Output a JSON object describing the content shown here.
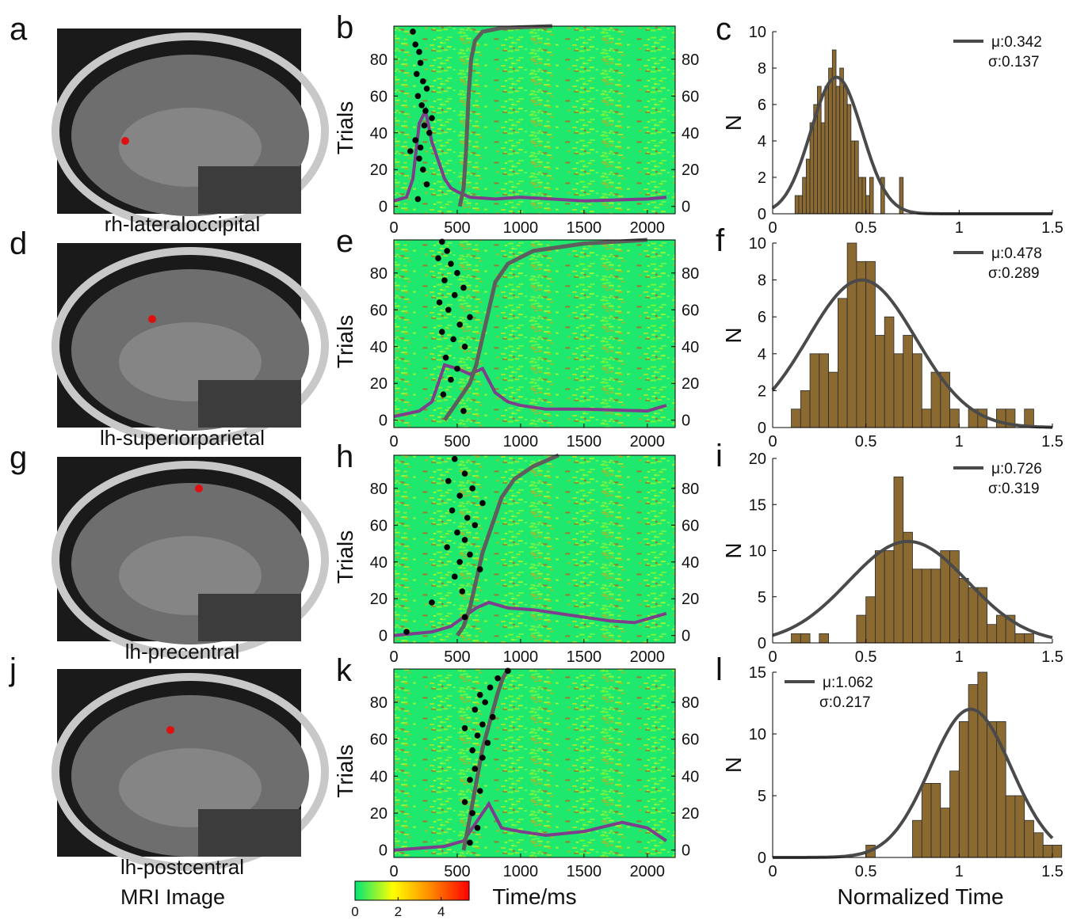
{
  "panels": [
    {
      "letter": "a",
      "label": "rh-lateraloccipital"
    },
    {
      "letter": "d",
      "label": "lh-superiorparietal"
    },
    {
      "letter": "g",
      "label": "lh-precentral"
    },
    {
      "letter": "j",
      "label": "lh-postcentral"
    }
  ],
  "mri_caption": "MRI Image",
  "chart_data": [
    {
      "type": "raster",
      "panel": "b",
      "ylabel": "Trials",
      "xlim": [
        0,
        2220
      ],
      "xticks": [
        0,
        500,
        1000,
        1500,
        2000
      ],
      "ylim": [
        -4,
        98
      ],
      "yticks": [
        0,
        20,
        40,
        60,
        80
      ],
      "y2lim": [
        -4,
        98
      ],
      "y2ticks": [
        0,
        20,
        40,
        60,
        80
      ],
      "background": "#1ee86e",
      "points": {
        "color": "#000000",
        "x": [
          150,
          170,
          200,
          210,
          180,
          230,
          260,
          190,
          220,
          250,
          300,
          240,
          280,
          170,
          210,
          130,
          200,
          230,
          260,
          190
        ],
        "y": [
          95,
          88,
          84,
          78,
          72,
          68,
          64,
          60,
          55,
          52,
          48,
          44,
          40,
          36,
          32,
          30,
          26,
          20,
          12,
          4
        ]
      },
      "curve": {
        "color": "#5e5e5e",
        "x": [
          520,
          550,
          570,
          590,
          610,
          640,
          700,
          850,
          1250
        ],
        "y": [
          0,
          10,
          30,
          60,
          80,
          90,
          95,
          97,
          98
        ]
      },
      "rate": {
        "color": "#7d3f8c",
        "axis": "y2",
        "x": [
          0,
          100,
          150,
          200,
          250,
          300,
          350,
          400,
          450,
          500,
          600,
          800,
          1000,
          1500,
          2000,
          2150
        ],
        "values": [
          3,
          5,
          15,
          45,
          52,
          35,
          25,
          15,
          10,
          8,
          5,
          4,
          5,
          3,
          4,
          5
        ]
      }
    },
    {
      "type": "raster",
      "panel": "e",
      "ylabel": "Trials",
      "xlim": [
        0,
        2220
      ],
      "xticks": [
        0,
        500,
        1000,
        1500,
        2000
      ],
      "ylim": [
        -4,
        98
      ],
      "yticks": [
        0,
        20,
        40,
        60,
        80
      ],
      "y2lim": [
        -4,
        98
      ],
      "y2ticks": [
        0,
        20,
        40,
        60,
        80
      ],
      "background": "#1ee86e",
      "points": {
        "color": "#000000",
        "x": [
          380,
          420,
          350,
          450,
          500,
          400,
          550,
          480,
          360,
          430,
          600,
          520,
          380,
          470,
          560,
          410,
          500,
          450,
          390,
          550
        ],
        "y": [
          97,
          92,
          88,
          85,
          80,
          76,
          72,
          68,
          64,
          60,
          56,
          52,
          48,
          44,
          40,
          34,
          28,
          22,
          14,
          5
        ]
      },
      "curve": {
        "color": "#5e5e5e",
        "x": [
          400,
          450,
          500,
          600,
          650,
          700,
          750,
          800,
          900,
          1100,
          1500,
          2000
        ],
        "y": [
          0,
          5,
          10,
          20,
          30,
          45,
          60,
          75,
          85,
          92,
          96,
          98
        ]
      },
      "rate": {
        "color": "#7d3f8c",
        "axis": "y2",
        "x": [
          0,
          200,
          300,
          400,
          500,
          600,
          700,
          800,
          900,
          1000,
          1200,
          1500,
          2000,
          2150
        ],
        "values": [
          2,
          5,
          10,
          30,
          28,
          25,
          28,
          15,
          10,
          8,
          6,
          6,
          5,
          8
        ]
      }
    },
    {
      "type": "raster",
      "panel": "h",
      "ylabel": "Trials",
      "xlim": [
        0,
        2220
      ],
      "xticks": [
        0,
        500,
        1000,
        1500,
        2000
      ],
      "ylim": [
        -4,
        98
      ],
      "yticks": [
        0,
        20,
        40,
        60,
        80
      ],
      "y2lim": [
        -4,
        98
      ],
      "y2ticks": [
        0,
        20,
        40,
        60,
        80
      ],
      "background": "#1ee86e",
      "points": {
        "color": "#000000",
        "x": [
          480,
          560,
          430,
          620,
          520,
          700,
          460,
          580,
          640,
          500,
          560,
          420,
          600,
          520,
          680,
          480,
          540,
          300,
          560,
          100
        ],
        "y": [
          96,
          88,
          84,
          80,
          76,
          72,
          68,
          64,
          60,
          56,
          52,
          48,
          44,
          40,
          36,
          32,
          24,
          18,
          10,
          2
        ]
      },
      "curve": {
        "color": "#5e5e5e",
        "x": [
          500,
          550,
          600,
          650,
          700,
          750,
          800,
          850,
          950,
          1100,
          1300
        ],
        "y": [
          0,
          5,
          15,
          30,
          45,
          55,
          65,
          75,
          85,
          92,
          98
        ]
      },
      "rate": {
        "color": "#7d3f8c",
        "axis": "y2",
        "x": [
          0,
          300,
          450,
          550,
          650,
          750,
          900,
          1100,
          1300,
          1500,
          1700,
          1900,
          2150
        ],
        "values": [
          0,
          2,
          5,
          10,
          15,
          18,
          15,
          14,
          12,
          10,
          8,
          7,
          12
        ]
      }
    },
    {
      "type": "raster",
      "panel": "k",
      "ylabel": "Trials",
      "xlabel": "Time/ms",
      "xlim": [
        0,
        2220
      ],
      "xticks": [
        0,
        500,
        1000,
        1500,
        2000
      ],
      "ylim": [
        -4,
        98
      ],
      "yticks": [
        0,
        20,
        40,
        60,
        80
      ],
      "y2lim": [
        -4,
        98
      ],
      "y2ticks": [
        0,
        20,
        40,
        60,
        80
      ],
      "background": "#1ee86e",
      "points": {
        "color": "#000000",
        "x": [
          900,
          820,
          760,
          680,
          720,
          640,
          780,
          700,
          560,
          660,
          740,
          620,
          700,
          640,
          600,
          680,
          560,
          620,
          660,
          600
        ],
        "y": [
          97,
          93,
          88,
          84,
          80,
          76,
          72,
          68,
          66,
          62,
          58,
          54,
          50,
          44,
          38,
          32,
          26,
          20,
          12,
          4
        ]
      },
      "curve": {
        "color": "#5e5e5e",
        "x": [
          550,
          580,
          620,
          660,
          700,
          740,
          780,
          820,
          860,
          900
        ],
        "y": [
          0,
          10,
          25,
          40,
          55,
          65,
          75,
          85,
          93,
          98
        ]
      },
      "rate": {
        "color": "#7d3f8c",
        "axis": "y2",
        "x": [
          0,
          400,
          550,
          650,
          750,
          850,
          1000,
          1200,
          1500,
          1800,
          2000,
          2150
        ],
        "values": [
          0,
          2,
          5,
          15,
          25,
          12,
          10,
          8,
          10,
          15,
          12,
          5
        ]
      }
    },
    {
      "type": "histogram",
      "panel": "c",
      "ylabel": "N",
      "color": "#8b6a32",
      "legend": "upper right",
      "xlim": [
        0,
        1.5
      ],
      "xticks": [
        0,
        0.5,
        1,
        1.5
      ],
      "ylim": [
        0,
        10
      ],
      "yticks": [
        0,
        2,
        4,
        6,
        8,
        10
      ],
      "bins": [
        0.12,
        0.14,
        0.16,
        0.18,
        0.2,
        0.22,
        0.24,
        0.26,
        0.28,
        0.3,
        0.32,
        0.34,
        0.36,
        0.38,
        0.4,
        0.42,
        0.44,
        0.46,
        0.48,
        0.5,
        0.52,
        0.54,
        0.56,
        0.58,
        0.6,
        0.62,
        0.64,
        0.66,
        0.68,
        0.7
      ],
      "counts": [
        1,
        1,
        2,
        3,
        5,
        6,
        7,
        5,
        7,
        8,
        9,
        7,
        8,
        7,
        6,
        4,
        4,
        2,
        2,
        1,
        2,
        0,
        0,
        2,
        0,
        0,
        0,
        0,
        2
      ],
      "fit": {
        "color": "#4a4a4a",
        "mu": 0.342,
        "sigma": 0.137,
        "peak": 7.5,
        "labels": [
          "μ:0.342",
          "σ:0.137"
        ]
      }
    },
    {
      "type": "histogram",
      "panel": "f",
      "ylabel": "N",
      "color": "#8b6a32",
      "legend": "upper right",
      "xlim": [
        0,
        1.5
      ],
      "xticks": [
        0,
        0.5,
        1,
        1.5
      ],
      "ylim": [
        0,
        10
      ],
      "yticks": [
        0,
        2,
        4,
        6,
        8,
        10
      ],
      "bins": [
        0.1,
        0.15,
        0.2,
        0.25,
        0.3,
        0.35,
        0.4,
        0.45,
        0.5,
        0.55,
        0.6,
        0.65,
        0.7,
        0.75,
        0.8,
        0.85,
        0.9,
        0.95,
        1.0,
        1.05,
        1.1,
        1.15,
        1.2,
        1.25,
        1.3,
        1.35,
        1.4
      ],
      "counts": [
        1,
        2,
        4,
        4,
        3,
        7,
        10,
        9,
        9,
        5,
        6,
        4,
        5,
        4,
        1,
        3,
        3,
        1,
        0,
        1,
        1,
        0,
        1,
        1,
        0,
        1
      ],
      "fit": {
        "color": "#4a4a4a",
        "mu": 0.478,
        "sigma": 0.289,
        "peak": 8,
        "labels": [
          "μ:0.478",
          "σ:0.289"
        ]
      }
    },
    {
      "type": "histogram",
      "panel": "i",
      "ylabel": "N",
      "color": "#8b6a32",
      "legend": "upper right",
      "xlim": [
        0,
        1.5
      ],
      "xticks": [
        0,
        0.5,
        1,
        1.5
      ],
      "ylim": [
        0,
        20
      ],
      "yticks": [
        0,
        5,
        10,
        15,
        20
      ],
      "bins": [
        0.1,
        0.15,
        0.2,
        0.25,
        0.3,
        0.35,
        0.4,
        0.45,
        0.5,
        0.55,
        0.6,
        0.65,
        0.7,
        0.75,
        0.8,
        0.85,
        0.9,
        0.95,
        1.0,
        1.05,
        1.1,
        1.15,
        1.2,
        1.25,
        1.3,
        1.35,
        1.4
      ],
      "counts": [
        1,
        1,
        0,
        1,
        0,
        0,
        0,
        3,
        5,
        10,
        10,
        18,
        12,
        8,
        8,
        8,
        10,
        10,
        7,
        6,
        6,
        2,
        3,
        3,
        1,
        1
      ],
      "fit": {
        "color": "#4a4a4a",
        "mu": 0.726,
        "sigma": 0.319,
        "peak": 11,
        "labels": [
          "μ:0.726",
          "σ:0.319"
        ]
      }
    },
    {
      "type": "histogram",
      "panel": "l",
      "ylabel": "N",
      "xlabel": "Normalized Time",
      "color": "#8b6a32",
      "legend": "upper left",
      "xlim": [
        0,
        1.5
      ],
      "xticks": [
        0,
        0.5,
        1,
        1.5
      ],
      "ylim": [
        0,
        15
      ],
      "yticks": [
        0,
        5,
        10,
        15
      ],
      "bins": [
        0.5,
        0.55,
        0.6,
        0.65,
        0.7,
        0.75,
        0.8,
        0.85,
        0.9,
        0.95,
        1.0,
        1.05,
        1.1,
        1.15,
        1.2,
        1.25,
        1.3,
        1.35,
        1.4,
        1.45,
        1.5,
        1.55
      ],
      "counts": [
        1,
        0,
        0,
        0,
        0,
        3,
        6,
        6,
        4,
        7,
        11,
        14,
        15,
        11,
        11,
        5,
        5,
        3,
        2,
        1,
        1
      ],
      "fit": {
        "color": "#4a4a4a",
        "mu": 1.062,
        "sigma": 0.217,
        "peak": 12,
        "labels": [
          "μ:1.062",
          "σ:0.217"
        ]
      }
    },
    {
      "type": "colorbar",
      "xlim": [
        0,
        5.3
      ],
      "xticks": [
        0,
        2,
        4
      ],
      "colors": [
        "#00e676",
        "#ffff00",
        "#ff8800",
        "#ff0000"
      ]
    }
  ]
}
